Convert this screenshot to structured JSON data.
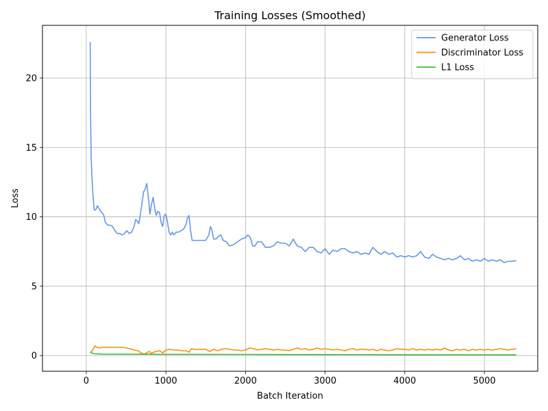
{
  "chart_data": {
    "type": "line",
    "title": "Training Losses (Smoothed)",
    "xlabel": "Batch Iteration",
    "ylabel": "Loss",
    "xlim": [
      -550,
      5670
    ],
    "ylim": [
      -1.13,
      23.8
    ],
    "x_ticks": [
      0,
      1000,
      2000,
      3000,
      4000,
      5000
    ],
    "y_ticks": [
      0,
      5,
      10,
      15,
      20
    ],
    "grid": true,
    "legend_position": "top-right",
    "series": [
      {
        "name": "Generator Loss",
        "color": "#6495ed",
        "points": [
          [
            50,
            22.6
          ],
          [
            55,
            17
          ],
          [
            62,
            14.2
          ],
          [
            72,
            12.8
          ],
          [
            85,
            11.5
          ],
          [
            100,
            10.5
          ],
          [
            120,
            10.5
          ],
          [
            140,
            10.8
          ],
          [
            160,
            10.6
          ],
          [
            180,
            10.4
          ],
          [
            200,
            10.3
          ],
          [
            220,
            10.1
          ],
          [
            240,
            9.6
          ],
          [
            270,
            9.4
          ],
          [
            300,
            9.4
          ],
          [
            330,
            9.3
          ],
          [
            360,
            9.0
          ],
          [
            390,
            8.8
          ],
          [
            420,
            8.8
          ],
          [
            450,
            8.7
          ],
          [
            480,
            8.8
          ],
          [
            510,
            9.0
          ],
          [
            540,
            8.8
          ],
          [
            570,
            8.9
          ],
          [
            600,
            9.3
          ],
          [
            620,
            9.8
          ],
          [
            640,
            9.7
          ],
          [
            660,
            9.5
          ],
          [
            680,
            10.2
          ],
          [
            700,
            11.0
          ],
          [
            720,
            11.8
          ],
          [
            740,
            12.0
          ],
          [
            760,
            12.4
          ],
          [
            780,
            11.4
          ],
          [
            800,
            10.2
          ],
          [
            820,
            10.9
          ],
          [
            840,
            11.4
          ],
          [
            860,
            10.6
          ],
          [
            880,
            10.1
          ],
          [
            900,
            10.4
          ],
          [
            920,
            10.3
          ],
          [
            940,
            9.6
          ],
          [
            960,
            9.3
          ],
          [
            980,
            10.1
          ],
          [
            1000,
            10.2
          ],
          [
            1020,
            9.6
          ],
          [
            1040,
            8.9
          ],
          [
            1060,
            8.7
          ],
          [
            1080,
            8.9
          ],
          [
            1100,
            8.7
          ],
          [
            1130,
            8.9
          ],
          [
            1160,
            8.9
          ],
          [
            1190,
            9.0
          ],
          [
            1220,
            9.1
          ],
          [
            1250,
            9.4
          ],
          [
            1270,
            9.9
          ],
          [
            1290,
            10.1
          ],
          [
            1310,
            9.0
          ],
          [
            1330,
            8.3
          ],
          [
            1360,
            8.3
          ],
          [
            1400,
            8.3
          ],
          [
            1450,
            8.3
          ],
          [
            1500,
            8.3
          ],
          [
            1540,
            8.7
          ],
          [
            1560,
            9.3
          ],
          [
            1580,
            9.0
          ],
          [
            1600,
            8.4
          ],
          [
            1630,
            8.4
          ],
          [
            1660,
            8.6
          ],
          [
            1690,
            8.7
          ],
          [
            1720,
            8.3
          ],
          [
            1760,
            8.2
          ],
          [
            1800,
            7.9
          ],
          [
            1850,
            8.0
          ],
          [
            1900,
            8.2
          ],
          [
            1950,
            8.4
          ],
          [
            2000,
            8.5
          ],
          [
            2030,
            8.7
          ],
          [
            2060,
            8.5
          ],
          [
            2090,
            7.9
          ],
          [
            2120,
            7.9
          ],
          [
            2150,
            8.2
          ],
          [
            2200,
            8.2
          ],
          [
            2250,
            7.8
          ],
          [
            2300,
            7.8
          ],
          [
            2350,
            7.9
          ],
          [
            2400,
            8.2
          ],
          [
            2450,
            8.1
          ],
          [
            2500,
            8.1
          ],
          [
            2550,
            7.9
          ],
          [
            2600,
            8.4
          ],
          [
            2650,
            7.9
          ],
          [
            2700,
            7.8
          ],
          [
            2750,
            7.5
          ],
          [
            2800,
            7.8
          ],
          [
            2850,
            7.8
          ],
          [
            2900,
            7.5
          ],
          [
            2950,
            7.4
          ],
          [
            3000,
            7.7
          ],
          [
            3050,
            7.3
          ],
          [
            3100,
            7.6
          ],
          [
            3150,
            7.5
          ],
          [
            3200,
            7.7
          ],
          [
            3250,
            7.7
          ],
          [
            3300,
            7.5
          ],
          [
            3350,
            7.4
          ],
          [
            3400,
            7.5
          ],
          [
            3450,
            7.3
          ],
          [
            3500,
            7.4
          ],
          [
            3550,
            7.3
          ],
          [
            3600,
            7.8
          ],
          [
            3650,
            7.5
          ],
          [
            3700,
            7.3
          ],
          [
            3750,
            7.5
          ],
          [
            3800,
            7.3
          ],
          [
            3850,
            7.4
          ],
          [
            3900,
            7.1
          ],
          [
            3950,
            7.2
          ],
          [
            4000,
            7.1
          ],
          [
            4050,
            7.2
          ],
          [
            4100,
            7.1
          ],
          [
            4150,
            7.2
          ],
          [
            4200,
            7.5
          ],
          [
            4250,
            7.1
          ],
          [
            4300,
            7.0
          ],
          [
            4350,
            7.3
          ],
          [
            4400,
            7.1
          ],
          [
            4450,
            7.0
          ],
          [
            4500,
            6.9
          ],
          [
            4550,
            7.0
          ],
          [
            4600,
            6.9
          ],
          [
            4650,
            7.0
          ],
          [
            4700,
            7.2
          ],
          [
            4750,
            6.9
          ],
          [
            4800,
            7.0
          ],
          [
            4850,
            6.8
          ],
          [
            4900,
            6.9
          ],
          [
            4950,
            6.8
          ],
          [
            5000,
            7.0
          ],
          [
            5050,
            6.8
          ],
          [
            5100,
            6.9
          ],
          [
            5150,
            6.8
          ],
          [
            5200,
            6.9
          ],
          [
            5250,
            6.7
          ],
          [
            5300,
            6.8
          ],
          [
            5350,
            6.8
          ],
          [
            5400,
            6.85
          ]
        ]
      },
      {
        "name": "Discriminator Loss",
        "color": "#ff8c00",
        "points": [
          [
            50,
            0.2
          ],
          [
            70,
            0.3
          ],
          [
            90,
            0.5
          ],
          [
            110,
            0.7
          ],
          [
            130,
            0.6
          ],
          [
            160,
            0.55
          ],
          [
            200,
            0.6
          ],
          [
            250,
            0.6
          ],
          [
            300,
            0.6
          ],
          [
            350,
            0.6
          ],
          [
            400,
            0.6
          ],
          [
            450,
            0.6
          ],
          [
            500,
            0.55
          ],
          [
            550,
            0.5
          ],
          [
            600,
            0.4
          ],
          [
            650,
            0.35
          ],
          [
            700,
            0.15
          ],
          [
            730,
            0.1
          ],
          [
            760,
            0.2
          ],
          [
            790,
            0.3
          ],
          [
            820,
            0.15
          ],
          [
            850,
            0.25
          ],
          [
            880,
            0.3
          ],
          [
            920,
            0.35
          ],
          [
            960,
            0.2
          ],
          [
            1000,
            0.4
          ],
          [
            1050,
            0.45
          ],
          [
            1100,
            0.4
          ],
          [
            1150,
            0.4
          ],
          [
            1200,
            0.35
          ],
          [
            1250,
            0.35
          ],
          [
            1290,
            0.25
          ],
          [
            1320,
            0.5
          ],
          [
            1360,
            0.45
          ],
          [
            1400,
            0.45
          ],
          [
            1450,
            0.45
          ],
          [
            1500,
            0.45
          ],
          [
            1550,
            0.3
          ],
          [
            1600,
            0.45
          ],
          [
            1650,
            0.35
          ],
          [
            1700,
            0.45
          ],
          [
            1750,
            0.5
          ],
          [
            1800,
            0.45
          ],
          [
            1850,
            0.4
          ],
          [
            1900,
            0.4
          ],
          [
            1950,
            0.35
          ],
          [
            2000,
            0.4
          ],
          [
            2050,
            0.55
          ],
          [
            2100,
            0.5
          ],
          [
            2150,
            0.4
          ],
          [
            2200,
            0.45
          ],
          [
            2250,
            0.5
          ],
          [
            2300,
            0.45
          ],
          [
            2350,
            0.4
          ],
          [
            2400,
            0.45
          ],
          [
            2450,
            0.4
          ],
          [
            2500,
            0.4
          ],
          [
            2550,
            0.35
          ],
          [
            2600,
            0.45
          ],
          [
            2650,
            0.55
          ],
          [
            2700,
            0.45
          ],
          [
            2750,
            0.5
          ],
          [
            2800,
            0.4
          ],
          [
            2850,
            0.45
          ],
          [
            2900,
            0.55
          ],
          [
            2950,
            0.45
          ],
          [
            3000,
            0.5
          ],
          [
            3050,
            0.45
          ],
          [
            3100,
            0.4
          ],
          [
            3150,
            0.45
          ],
          [
            3200,
            0.4
          ],
          [
            3250,
            0.35
          ],
          [
            3300,
            0.45
          ],
          [
            3350,
            0.5
          ],
          [
            3400,
            0.4
          ],
          [
            3450,
            0.45
          ],
          [
            3500,
            0.45
          ],
          [
            3550,
            0.4
          ],
          [
            3600,
            0.45
          ],
          [
            3650,
            0.35
          ],
          [
            3700,
            0.45
          ],
          [
            3750,
            0.4
          ],
          [
            3800,
            0.35
          ],
          [
            3850,
            0.4
          ],
          [
            3900,
            0.5
          ],
          [
            3950,
            0.45
          ],
          [
            4000,
            0.45
          ],
          [
            4050,
            0.4
          ],
          [
            4100,
            0.5
          ],
          [
            4150,
            0.4
          ],
          [
            4200,
            0.45
          ],
          [
            4250,
            0.4
          ],
          [
            4300,
            0.45
          ],
          [
            4350,
            0.4
          ],
          [
            4400,
            0.45
          ],
          [
            4450,
            0.4
          ],
          [
            4500,
            0.55
          ],
          [
            4550,
            0.4
          ],
          [
            4600,
            0.35
          ],
          [
            4650,
            0.45
          ],
          [
            4700,
            0.4
          ],
          [
            4750,
            0.45
          ],
          [
            4800,
            0.35
          ],
          [
            4850,
            0.45
          ],
          [
            4900,
            0.4
          ],
          [
            4950,
            0.45
          ],
          [
            5000,
            0.4
          ],
          [
            5050,
            0.45
          ],
          [
            5100,
            0.4
          ],
          [
            5150,
            0.45
          ],
          [
            5200,
            0.5
          ],
          [
            5250,
            0.45
          ],
          [
            5300,
            0.4
          ],
          [
            5350,
            0.45
          ],
          [
            5400,
            0.5
          ]
        ]
      },
      {
        "name": "L1 Loss",
        "color": "#3cb83c",
        "points": [
          [
            50,
            0.28
          ],
          [
            70,
            0.18
          ],
          [
            100,
            0.13
          ],
          [
            200,
            0.11
          ],
          [
            500,
            0.1
          ],
          [
            1000,
            0.09
          ],
          [
            2000,
            0.08
          ],
          [
            3000,
            0.07
          ],
          [
            4000,
            0.06
          ],
          [
            5000,
            0.05
          ],
          [
            5400,
            0.05
          ]
        ]
      }
    ]
  }
}
